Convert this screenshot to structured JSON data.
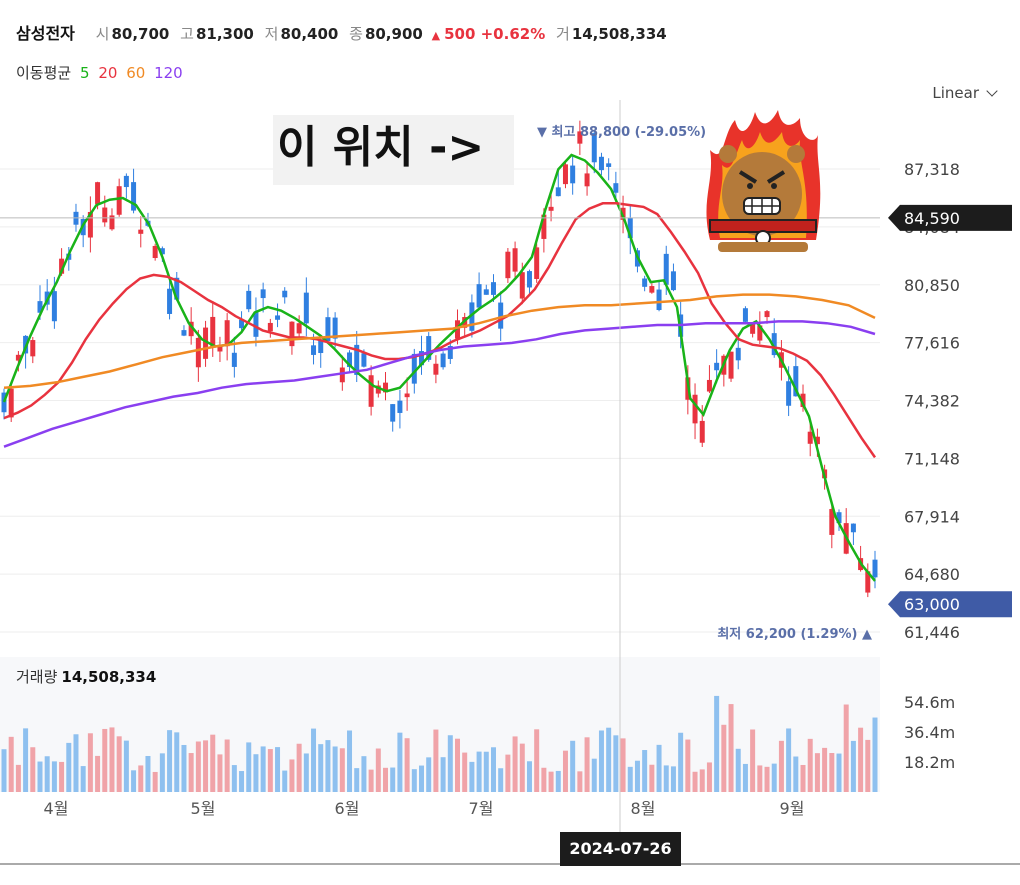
{
  "header": {
    "name": "삼성전자",
    "open_label": "시",
    "open": "80,700",
    "high_label": "고",
    "high": "81,300",
    "low_label": "저",
    "low": "80,400",
    "close_label": "종",
    "close": "80,900",
    "change": "500 +0.62%",
    "vol_label": "거",
    "volume": "14,508,334"
  },
  "ma_legend": {
    "label": "이동평균",
    "items": [
      {
        "label": "5",
        "color": "#19b319"
      },
      {
        "label": "20",
        "color": "#e8333f"
      },
      {
        "label": "60",
        "color": "#f08a24"
      },
      {
        "label": "120",
        "color": "#8a3ff0"
      }
    ]
  },
  "scale_label": "Linear",
  "annotation_text": "이 위치 ->",
  "colors": {
    "up": "#e8333f",
    "down": "#2f7fe0",
    "crosshair_tag": "#1c1c1c",
    "last_tag": "#3f5ba6",
    "ann": "#5a6fa8"
  },
  "chart_data": {
    "type": "candlestick",
    "y_ticks": [
      87318,
      84084,
      80850,
      77616,
      74382,
      71148,
      67914,
      64680,
      61446
    ],
    "y_tick_labels": [
      "87,318",
      "84,084",
      "80,850",
      "77,616",
      "74,382",
      "71,148",
      "67,914",
      "64,680",
      "61,446"
    ],
    "ylim": [
      60400,
      92400
    ],
    "x_months": [
      "4월",
      "5월",
      "6월",
      "7월",
      "8월",
      "9월"
    ],
    "crosshair_price": "84,590",
    "crosshair_date": "2024-07-26",
    "last_price": "63,000",
    "high_annotation": "최고 88,800 (-29.05%)",
    "low_annotation": "최저 62,200 (1.29%)",
    "volume_title": "거래량",
    "volume_value": "14,508,334",
    "volume_ticks": [
      "54.6m",
      "36.4m",
      "18.2m"
    ],
    "ma_series": [
      {
        "name": "5",
        "color": "#19b319",
        "values": [
          74300,
          76200,
          78000,
          79600,
          81000,
          82700,
          84200,
          85300,
          85600,
          85700,
          85300,
          84200,
          82400,
          80200,
          78700,
          77800,
          77400,
          77500,
          78200,
          79300,
          79600,
          79400,
          79000,
          78500,
          78000,
          77300,
          76500,
          75800,
          75200,
          74900,
          75100,
          75900,
          76700,
          77500,
          78200,
          78900,
          79500,
          80000,
          80600,
          81400,
          82400,
          85000,
          87300,
          88100,
          87800,
          87100,
          86200,
          84500,
          82400,
          81000,
          81100,
          79600,
          74500,
          73600,
          75500,
          77200,
          78400,
          78800,
          77800,
          76500,
          75000,
          73500,
          70600,
          67900,
          66500,
          65200,
          64300
        ]
      },
      {
        "name": "20",
        "color": "#e8333f",
        "values": [
          73400,
          73700,
          74100,
          74700,
          75400,
          76500,
          77800,
          78900,
          79800,
          80600,
          81200,
          81400,
          81300,
          81000,
          80500,
          80000,
          79600,
          79100,
          78700,
          78300,
          78100,
          77900,
          77900,
          77800,
          77600,
          77400,
          77200,
          76900,
          76700,
          76700,
          76800,
          77000,
          77300,
          77700,
          78000,
          78300,
          78700,
          79100,
          79800,
          80600,
          81800,
          83200,
          84500,
          85100,
          85400,
          85400,
          85300,
          85200,
          84800,
          83800,
          82700,
          81500,
          79800,
          78700,
          77800,
          77500,
          77400,
          77300,
          77000,
          76600,
          75800,
          74700,
          73500,
          72300,
          71200
        ]
      },
      {
        "name": "60",
        "color": "#f08a24",
        "values": [
          75100,
          75200,
          75400,
          75700,
          76000,
          76400,
          76800,
          77100,
          77400,
          77600,
          77700,
          77800,
          77900,
          78000,
          78100,
          78200,
          78300,
          78400,
          78700,
          79100,
          79400,
          79600,
          79700,
          79700,
          79800,
          79900,
          80000,
          80200,
          80300,
          80300,
          80200,
          80000,
          79700,
          79000
        ]
      },
      {
        "name": "120",
        "color": "#8a3ff0",
        "values": [
          71800,
          72300,
          72800,
          73200,
          73600,
          74000,
          74300,
          74600,
          74800,
          75100,
          75300,
          75400,
          75500,
          75700,
          75900,
          76100,
          76500,
          76900,
          77200,
          77400,
          77500,
          77600,
          77800,
          78100,
          78300,
          78400,
          78500,
          78600,
          78600,
          78700,
          78700,
          78700,
          78800,
          78800,
          78700,
          78500,
          78100
        ]
      }
    ]
  }
}
